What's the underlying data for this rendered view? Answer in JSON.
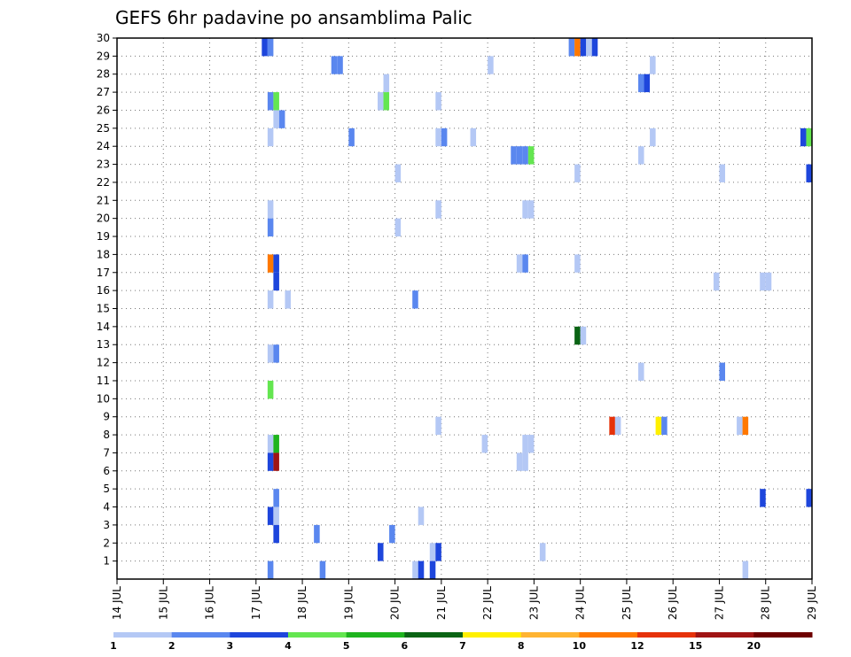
{
  "chart_data": {
    "type": "heatmap",
    "title": "GEFS 6hr padavine po ansamblima Palic",
    "xlabel": "",
    "ylabel": "",
    "x_ticks": [
      "14 JUL",
      "15 JUL",
      "16 JUL",
      "17 JUL",
      "18 JUL",
      "19 JUL",
      "20 JUL",
      "21 JUL",
      "22 JUL",
      "23 JUL",
      "24 JUL",
      "25 JUL",
      "26 JUL",
      "27 JUL",
      "28 JUL",
      "29 JUL"
    ],
    "y_ticks": [
      "1",
      "2",
      "3",
      "4",
      "5",
      "6",
      "7",
      "8",
      "9",
      "10",
      "11",
      "12",
      "13",
      "14",
      "15",
      "16",
      "17",
      "18",
      "19",
      "20",
      "21",
      "22",
      "23",
      "24",
      "25",
      "26",
      "27",
      "28",
      "29",
      "30"
    ],
    "xlim": [
      0,
      60
    ],
    "ylim": [
      0,
      30
    ],
    "grid": true,
    "colorbar": {
      "levels": [
        "1",
        "2",
        "3",
        "4",
        "5",
        "6",
        "7",
        "8",
        "10",
        "12",
        "15",
        "20"
      ],
      "colors": [
        "#b4c8f5",
        "#5a87ef",
        "#1e46dc",
        "#64e650",
        "#1eb41e",
        "#0a6414",
        "#fff000",
        "#ffb432",
        "#ff7800",
        "#e6320a",
        "#a01414",
        "#6e0000"
      ]
    },
    "cells": [
      {
        "x": 12.75,
        "m": 30,
        "c": 3
      },
      {
        "x": 13.25,
        "m": 30,
        "c": 2
      },
      {
        "x": 39.25,
        "m": 30,
        "c": 2
      },
      {
        "x": 39.75,
        "m": 30,
        "c": 10
      },
      {
        "x": 40.25,
        "m": 30,
        "c": 3
      },
      {
        "x": 40.75,
        "m": 30,
        "c": 1
      },
      {
        "x": 41.25,
        "m": 30,
        "c": 3
      },
      {
        "x": 18.75,
        "m": 29,
        "c": 2
      },
      {
        "x": 19.25,
        "m": 29,
        "c": 2
      },
      {
        "x": 32.25,
        "m": 29,
        "c": 1
      },
      {
        "x": 46.25,
        "m": 29,
        "c": 1
      },
      {
        "x": 23.25,
        "m": 28,
        "c": 1
      },
      {
        "x": 45.25,
        "m": 28,
        "c": 2
      },
      {
        "x": 45.75,
        "m": 28,
        "c": 3
      },
      {
        "x": 13.25,
        "m": 27,
        "c": 2
      },
      {
        "x": 13.75,
        "m": 27,
        "c": 4
      },
      {
        "x": 22.75,
        "m": 27,
        "c": 1
      },
      {
        "x": 23.25,
        "m": 27,
        "c": 4
      },
      {
        "x": 27.75,
        "m": 27,
        "c": 1
      },
      {
        "x": 13.75,
        "m": 26,
        "c": 1
      },
      {
        "x": 14.25,
        "m": 26,
        "c": 2
      },
      {
        "x": 13.25,
        "m": 25,
        "c": 1
      },
      {
        "x": 20.25,
        "m": 25,
        "c": 2
      },
      {
        "x": 27.75,
        "m": 25,
        "c": 1
      },
      {
        "x": 28.25,
        "m": 25,
        "c": 2
      },
      {
        "x": 30.75,
        "m": 25,
        "c": 1
      },
      {
        "x": 46.25,
        "m": 25,
        "c": 1
      },
      {
        "x": 59.25,
        "m": 25,
        "c": 3
      },
      {
        "x": 59.75,
        "m": 25,
        "c": 4
      },
      {
        "x": 34.25,
        "m": 24,
        "c": 2
      },
      {
        "x": 34.75,
        "m": 24,
        "c": 2
      },
      {
        "x": 35.25,
        "m": 24,
        "c": 2
      },
      {
        "x": 35.75,
        "m": 24,
        "c": 4
      },
      {
        "x": 45.25,
        "m": 24,
        "c": 1
      },
      {
        "x": 24.25,
        "m": 23,
        "c": 1
      },
      {
        "x": 39.75,
        "m": 23,
        "c": 1
      },
      {
        "x": 52.25,
        "m": 23,
        "c": 1
      },
      {
        "x": 59.75,
        "m": 23,
        "c": 3
      },
      {
        "x": 13.25,
        "m": 21,
        "c": 1
      },
      {
        "x": 27.75,
        "m": 21,
        "c": 1
      },
      {
        "x": 35.25,
        "m": 21,
        "c": 1
      },
      {
        "x": 35.75,
        "m": 21,
        "c": 1
      },
      {
        "x": 13.25,
        "m": 20,
        "c": 2
      },
      {
        "x": 24.25,
        "m": 20,
        "c": 1
      },
      {
        "x": 13.25,
        "m": 18,
        "c": 10
      },
      {
        "x": 13.75,
        "m": 18,
        "c": 3
      },
      {
        "x": 34.75,
        "m": 18,
        "c": 1
      },
      {
        "x": 35.25,
        "m": 18,
        "c": 2
      },
      {
        "x": 39.75,
        "m": 18,
        "c": 1
      },
      {
        "x": 13.75,
        "m": 17,
        "c": 3
      },
      {
        "x": 51.75,
        "m": 17,
        "c": 1
      },
      {
        "x": 55.75,
        "m": 17,
        "c": 1
      },
      {
        "x": 56.25,
        "m": 17,
        "c": 1
      },
      {
        "x": 13.25,
        "m": 16,
        "c": 1
      },
      {
        "x": 14.75,
        "m": 16,
        "c": 1
      },
      {
        "x": 25.75,
        "m": 16,
        "c": 2
      },
      {
        "x": 39.75,
        "m": 14,
        "c": 6
      },
      {
        "x": 40.25,
        "m": 14,
        "c": 1
      },
      {
        "x": 13.25,
        "m": 13,
        "c": 1
      },
      {
        "x": 13.75,
        "m": 13,
        "c": 2
      },
      {
        "x": 45.25,
        "m": 12,
        "c": 1
      },
      {
        "x": 52.25,
        "m": 12,
        "c": 2
      },
      {
        "x": 13.25,
        "m": 11,
        "c": 4
      },
      {
        "x": 27.75,
        "m": 9,
        "c": 1
      },
      {
        "x": 42.75,
        "m": 9,
        "c": 12
      },
      {
        "x": 43.25,
        "m": 9,
        "c": 1
      },
      {
        "x": 46.75,
        "m": 9,
        "c": 7
      },
      {
        "x": 47.25,
        "m": 9,
        "c": 2
      },
      {
        "x": 53.75,
        "m": 9,
        "c": 1
      },
      {
        "x": 54.25,
        "m": 9,
        "c": 10
      },
      {
        "x": 13.25,
        "m": 8,
        "c": 1
      },
      {
        "x": 13.75,
        "m": 8,
        "c": 5
      },
      {
        "x": 31.75,
        "m": 8,
        "c": 1
      },
      {
        "x": 35.25,
        "m": 8,
        "c": 1
      },
      {
        "x": 35.75,
        "m": 8,
        "c": 1
      },
      {
        "x": 13.25,
        "m": 7,
        "c": 3
      },
      {
        "x": 13.75,
        "m": 7,
        "c": 15
      },
      {
        "x": 34.75,
        "m": 7,
        "c": 1
      },
      {
        "x": 35.25,
        "m": 7,
        "c": 1
      },
      {
        "x": 13.75,
        "m": 5,
        "c": 2
      },
      {
        "x": 55.75,
        "m": 5,
        "c": 3
      },
      {
        "x": 59.75,
        "m": 5,
        "c": 3
      },
      {
        "x": 13.25,
        "m": 4,
        "c": 3
      },
      {
        "x": 13.75,
        "m": 4,
        "c": 1
      },
      {
        "x": 26.25,
        "m": 4,
        "c": 1
      },
      {
        "x": 13.75,
        "m": 3,
        "c": 3
      },
      {
        "x": 17.25,
        "m": 3,
        "c": 2
      },
      {
        "x": 23.75,
        "m": 3,
        "c": 2
      },
      {
        "x": 22.75,
        "m": 2,
        "c": 3
      },
      {
        "x": 27.25,
        "m": 2,
        "c": 1
      },
      {
        "x": 27.75,
        "m": 2,
        "c": 3
      },
      {
        "x": 36.75,
        "m": 2,
        "c": 1
      },
      {
        "x": 13.25,
        "m": 1,
        "c": 2
      },
      {
        "x": 17.75,
        "m": 1,
        "c": 2
      },
      {
        "x": 25.75,
        "m": 1,
        "c": 1
      },
      {
        "x": 26.25,
        "m": 1,
        "c": 3
      },
      {
        "x": 27.25,
        "m": 1,
        "c": 3
      },
      {
        "x": 54.25,
        "m": 1,
        "c": 1
      }
    ]
  }
}
